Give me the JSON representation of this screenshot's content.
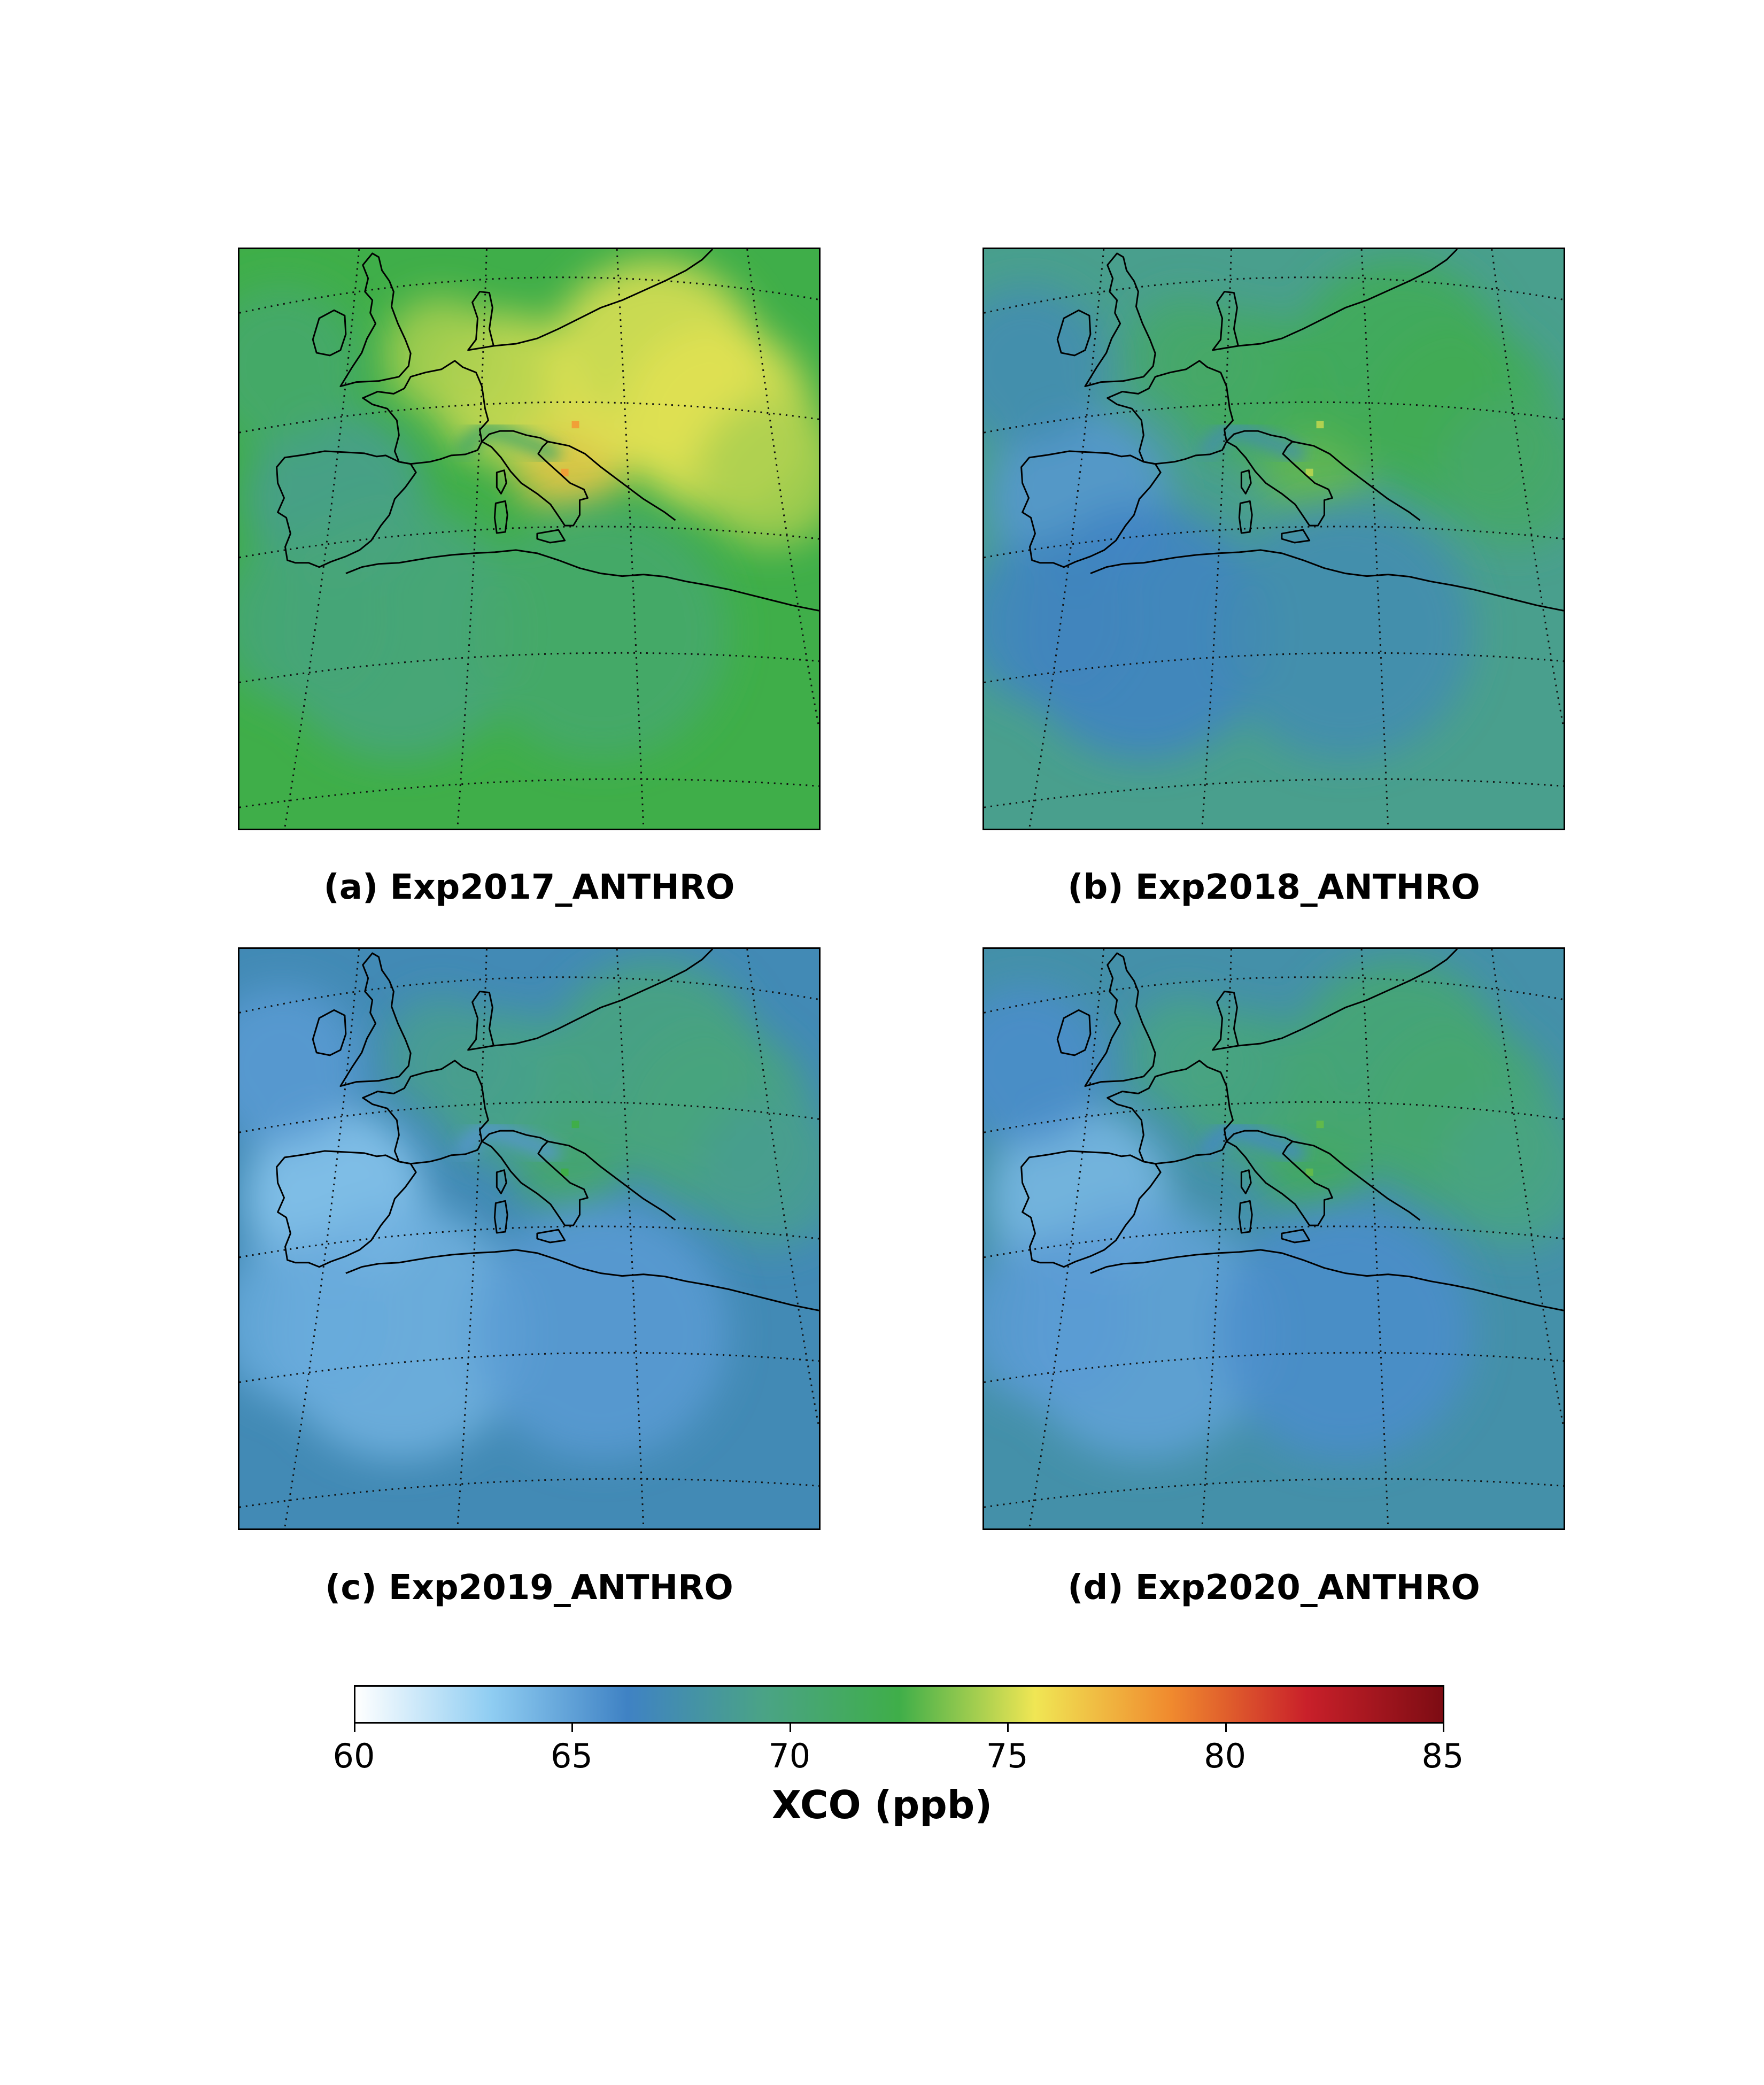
{
  "panels": [
    {
      "id": "a",
      "caption": "(a) Exp2017_ANTHRO",
      "level": 72.5
    },
    {
      "id": "b",
      "caption": "(b) Exp2018_ANTHRO",
      "level": 69.0
    },
    {
      "id": "c",
      "caption": "(c) Exp2019_ANTHRO",
      "level": 67.0
    },
    {
      "id": "d",
      "caption": "(d) Exp2020_ANTHRO",
      "level": 67.6
    }
  ],
  "colorbar": {
    "label": "XCO (ppb)",
    "min": 60,
    "max": 85,
    "ticks": [
      "60",
      "65",
      "70",
      "75",
      "80",
      "85"
    ],
    "colormap": [
      "#ffffff",
      "#8fcdf2",
      "#3f82c4",
      "#4aa386",
      "#3fae49",
      "#f0e654",
      "#f08a2e",
      "#c9202a",
      "#7d0c13"
    ]
  }
}
